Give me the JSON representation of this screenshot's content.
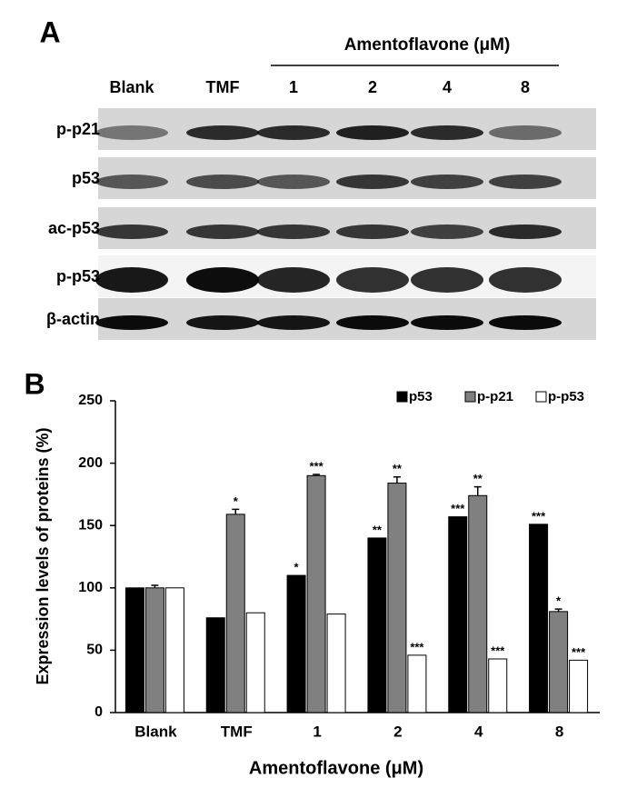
{
  "panel_a": {
    "label": "A",
    "group_label": "Amentoflavone (μM)",
    "lanes": [
      "Blank",
      "TMF",
      "1",
      "2",
      "4",
      "8"
    ],
    "rows": [
      "p-p21",
      "p53",
      "ac-p53",
      "p-p53",
      "β-actin"
    ]
  },
  "chart_data": {
    "type": "bar",
    "panel_label": "B",
    "y_label": "Expression levels of proteins (%)",
    "x_label": "Amentoflavone (μM)",
    "categories": [
      "Blank",
      "TMF",
      "1",
      "2",
      "4",
      "8"
    ],
    "series": [
      {
        "name": "p53",
        "color": "#000000",
        "values": [
          100,
          76,
          110,
          140,
          157,
          151
        ],
        "annotations": [
          null,
          null,
          "*",
          "**",
          "***",
          "***"
        ]
      },
      {
        "name": "p-p21",
        "color": "#808080",
        "values": [
          100,
          159,
          190,
          184,
          174,
          81
        ],
        "errors": [
          2,
          4,
          1,
          5,
          7,
          2
        ],
        "annotations": [
          null,
          "*",
          "***",
          "**",
          "**",
          "*"
        ]
      },
      {
        "name": "p-p53",
        "color": "#ffffff",
        "values": [
          100,
          80,
          79,
          46,
          43,
          42
        ],
        "annotations": [
          null,
          null,
          null,
          "***",
          "***",
          "***"
        ]
      }
    ],
    "ylim": [
      0,
      250
    ],
    "yticks": [
      0,
      50,
      100,
      150,
      200,
      250
    ],
    "grid": false,
    "legend": "top-right"
  }
}
